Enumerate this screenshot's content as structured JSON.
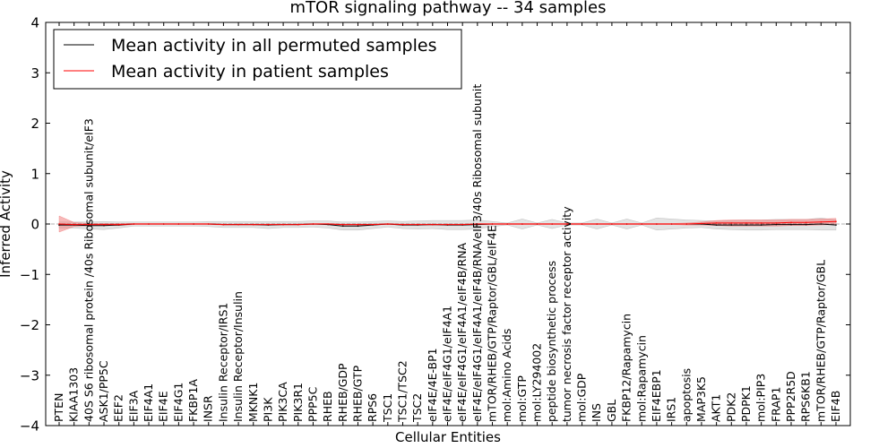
{
  "chart_data": {
    "type": "line",
    "title": "mTOR signaling pathway -- 34 samples",
    "xlabel": "Cellular Entities",
    "ylabel": "Inferred Activity",
    "ylim": [
      -4,
      4
    ],
    "yticks": [
      -4,
      -3,
      -2,
      -1,
      0,
      1,
      2,
      3,
      4
    ],
    "ytick_labels": [
      "−4",
      "−3",
      "−2",
      "−1",
      "0",
      "1",
      "2",
      "3",
      "4"
    ],
    "legend_position": "top-left",
    "categories": [
      "PTEN",
      "KIAA1303",
      "40S S6 ribosomal protein /40s Ribosomal subunit/eIF3",
      "ASK1/PP5C",
      "EEF2",
      "EIF3A",
      "EIF4A1",
      "EIF4E",
      "EIF4G1",
      "FKBP1A",
      "INSR",
      "Insulin Receptor/IRS1",
      "Insulin Receptor/Insulin",
      "MKNK1",
      "PI3K",
      "PIK3CA",
      "PIK3R1",
      "PPP5C",
      "RHEB",
      "RHEB/GDP",
      "RHEB/GTP",
      "RPS6",
      "TSC1",
      "TSC1/TSC2",
      "TSC2",
      "eIF4E/4E-BP1",
      "eIF4E/eIF4G1/eIF4A1",
      "eIF4E/eIF4G1/eIF4A1/eIF4B/RNA",
      "eIF4E/eIF4G1/eIF4A1/eIF4B/RNA/eIF3/40s Ribosomal subunit",
      "mTOR/RHEB/GTP/Raptor/GBL/eIF4E",
      "mol:Amino Acids",
      "mol:GTP",
      "mol:LY294002",
      "peptide biosynthetic process",
      "tumor necrosis factor receptor activity",
      "mol:GDP",
      "INS",
      "GBL",
      "FKBP12/Rapamycin",
      "mol:Rapamycin",
      "EIF4EBP1",
      "IRS1",
      "apoptosis",
      "MAP3K5",
      "AKT1",
      "PDK2",
      "PDPK1",
      "mol:PIP3",
      "FRAP1",
      "PPP2R5D",
      "RPS6KB1",
      "mTOR/RHEB/GTP/Raptor/GBL",
      "EIF4B"
    ],
    "series": [
      {
        "name": "Mean activity in all permuted samples",
        "color": "#000000",
        "band_color": "#b0b0b0",
        "values": [
          -0.02,
          -0.02,
          -0.03,
          -0.03,
          -0.02,
          0,
          0,
          0,
          0,
          0,
          0,
          -0.01,
          -0.01,
          -0.01,
          -0.02,
          -0.01,
          -0.01,
          0,
          -0.01,
          -0.04,
          -0.04,
          -0.02,
          0,
          -0.02,
          -0.02,
          -0.01,
          -0.02,
          -0.02,
          -0.01,
          0,
          0,
          0,
          0,
          0,
          0,
          0,
          0,
          0,
          0,
          0,
          0,
          0,
          0,
          0,
          -0.02,
          -0.02,
          -0.02,
          -0.02,
          -0.01,
          -0.01,
          -0.01,
          0,
          -0.02
        ],
        "band": [
          0.06,
          0.06,
          0.07,
          0.08,
          0.06,
          0.04,
          0.04,
          0.04,
          0.04,
          0.04,
          0.05,
          0.06,
          0.06,
          0.06,
          0.07,
          0.06,
          0.06,
          0.06,
          0.07,
          0.08,
          0.08,
          0.07,
          0.06,
          0.07,
          0.08,
          0.08,
          0.09,
          0.09,
          0.09,
          0.05,
          0.02,
          0.1,
          0.02,
          0.09,
          0.02,
          0.02,
          0.1,
          0.02,
          0.1,
          0.02,
          0.12,
          0.1,
          0.08,
          0.07,
          0.08,
          0.09,
          0.1,
          0.1,
          0.1,
          0.1,
          0.1,
          0.12,
          0.1
        ]
      },
      {
        "name": "Mean activity in patient samples",
        "color": "#ff0000",
        "band_color": "#f08080",
        "values": [
          0,
          -0.01,
          -0.01,
          -0.01,
          -0.01,
          0,
          0,
          0,
          0,
          0,
          0,
          -0.01,
          -0.01,
          -0.01,
          -0.01,
          -0.01,
          -0.01,
          0,
          0,
          -0.01,
          -0.01,
          -0.01,
          0,
          -0.01,
          -0.01,
          -0.01,
          -0.01,
          -0.01,
          0,
          0,
          0,
          0,
          0,
          0,
          0,
          0,
          0,
          0,
          0,
          0,
          0,
          0,
          0,
          0.01,
          0.02,
          0.02,
          0.02,
          0.02,
          0.02,
          0.03,
          0.03,
          0.04,
          0.05
        ],
        "band": [
          0.16,
          0.04,
          0.02,
          0.02,
          0.02,
          0.01,
          0.01,
          0.01,
          0.01,
          0.01,
          0.01,
          0.01,
          0.01,
          0.01,
          0.01,
          0.01,
          0.01,
          0.01,
          0.01,
          0.01,
          0.01,
          0.01,
          0.01,
          0.01,
          0.01,
          0.01,
          0.01,
          0.01,
          0.01,
          0.01,
          0.01,
          0.01,
          0.01,
          0.01,
          0.01,
          0.01,
          0.01,
          0.01,
          0.01,
          0.01,
          0.01,
          0.01,
          0.02,
          0.03,
          0.05,
          0.06,
          0.06,
          0.06,
          0.06,
          0.06,
          0.06,
          0.06,
          0.06
        ]
      }
    ]
  }
}
